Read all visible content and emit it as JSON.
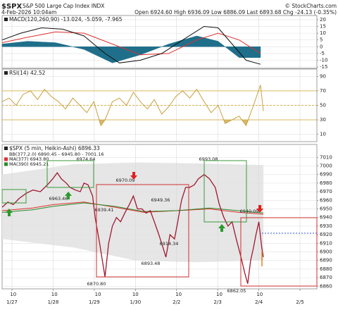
{
  "header": {
    "symbol": "$SPX",
    "name": "S&P 500 Large Cap Index INDX",
    "date": "4-Feb-2026 10:04am",
    "quote": "Open 6924.60 High 6936.09 Low 6886.09 Last 6893.68 Chg -24.13 (-0.35%)",
    "credit": "© StockCharts.com"
  },
  "chart_data": [
    {
      "type": "line",
      "title": "MACD(120,260,90) -13.024, -5.059, -7.965",
      "xlim": [
        -0.24,
        7.41
      ],
      "ylim": [
        -16,
        23.1
      ],
      "yticks": [
        20,
        15,
        10,
        5,
        0,
        -5,
        -10,
        -15
      ],
      "grid": true,
      "series": [
        {
          "color": "#1f6f8b",
          "area": true,
          "x": [
            -0.24,
            0.38,
            1.06,
            1.75,
            2.44,
            3.12,
            3.81,
            4.49,
            5.01,
            5.52,
            6.04
          ],
          "values": [
            2,
            4,
            3,
            -2,
            -12,
            -6,
            2,
            8,
            4,
            -8,
            -8
          ]
        },
        {
          "color": "#e03030",
          "x": [
            -0.24,
            0.38,
            1.06,
            1.75,
            2.44,
            3.12,
            3.81,
            4.49,
            5.01,
            5.52,
            6.04
          ],
          "values": [
            3,
            7,
            11,
            10,
            2,
            -6,
            -5,
            5,
            10,
            5,
            -5
          ]
        },
        {
          "color": "#111111",
          "x": [
            -0.24,
            0.21,
            0.72,
            1.23,
            1.75,
            2.26,
            2.61,
            3.12,
            3.64,
            4.15,
            4.67,
            5.01,
            5.35,
            5.69,
            6.04
          ],
          "values": [
            5,
            10,
            14,
            13,
            8,
            -5,
            -12,
            -10,
            -5,
            5,
            15,
            14,
            2,
            -10,
            -13
          ]
        }
      ]
    },
    {
      "type": "line",
      "title": "RSI(14) 42.52",
      "xlim": [
        -0.24,
        7.41
      ],
      "ylim": [
        0,
        100
      ],
      "yticks": [
        90,
        70,
        50,
        30,
        10
      ],
      "grid": true,
      "reference_lines": [
        70,
        50,
        30
      ],
      "reference_color": "#d9b24a",
      "shade_below": 30,
      "series": [
        {
          "color": "#c8a040",
          "x": [
            -0.24,
            -0.07,
            0.1,
            0.27,
            0.45,
            0.62,
            0.79,
            0.96,
            1.13,
            1.3,
            1.48,
            1.65,
            1.82,
            1.99,
            2.16,
            2.26,
            2.44,
            2.61,
            2.78,
            2.95,
            3.12,
            3.29,
            3.46,
            3.64,
            3.81,
            3.98,
            4.15,
            4.32,
            4.49,
            4.67,
            4.84,
            5.01,
            5.18,
            5.35,
            5.52,
            5.69,
            5.87,
            6.04,
            6.11
          ],
          "values": [
            55,
            60,
            50,
            65,
            70,
            58,
            72,
            62,
            55,
            45,
            60,
            50,
            40,
            55,
            22,
            30,
            55,
            60,
            50,
            68,
            55,
            45,
            58,
            38,
            48,
            62,
            70,
            60,
            72,
            55,
            40,
            50,
            25,
            30,
            35,
            22,
            50,
            78,
            42
          ]
        }
      ]
    },
    {
      "type": "line",
      "title": "$SPX (5 min, Heikin-Ashi) 6896.33",
      "legend": [
        "BB(377,2.0) 6890.45 - 6945.80 - 7001.16"
      ],
      "xlim": [
        -0.24,
        7.41
      ],
      "ylim": [
        6857,
        7025
      ],
      "yticks": [
        7010,
        7000,
        6990,
        6980,
        6970,
        6960,
        6950,
        6940,
        6930,
        6920,
        6910,
        6900,
        6890,
        6880,
        6870,
        6860
      ],
      "grid": true,
      "xticks": [
        {
          "value": 0,
          "label": "1/27"
        },
        {
          "value": 1,
          "label": "1/28"
        },
        {
          "value": 2,
          "label": "1/29"
        },
        {
          "value": 3,
          "label": "1/30"
        },
        {
          "value": 4,
          "label": "2/2"
        },
        {
          "value": 5,
          "label": "2/3"
        },
        {
          "value": 6,
          "label": "2/4"
        },
        {
          "value": 7,
          "label": "2/5"
        }
      ],
      "xticks_minor": [
        {
          "value": 0.03,
          "label": "10"
        },
        {
          "value": 1.03,
          "label": "10"
        },
        {
          "value": 2.09,
          "label": "10"
        },
        {
          "value": 3.0,
          "label": "10"
        },
        {
          "value": 4.05,
          "label": "10"
        },
        {
          "value": 5.04,
          "label": "10"
        },
        {
          "value": 6.02,
          "label": "10"
        }
      ],
      "band": {
        "color": "#e6e6e6",
        "x": [
          -0.24,
          1.5,
          3.0,
          4.5,
          6.11
        ],
        "upper": [
          6990,
          7002,
          7004,
          7003,
          7001
        ],
        "lower": [
          6915,
          6905,
          6890,
          6888,
          6890
        ]
      },
      "series": [
        {
          "name": "MA(377) 6943.80",
          "color": "#e03030",
          "x": [
            -0.24,
            0.5,
            1.0,
            1.75,
            2.5,
            3.2,
            4.0,
            4.8,
            5.5,
            6.11
          ],
          "values": [
            6948,
            6951,
            6955,
            6958,
            6952,
            6946,
            6948,
            6950,
            6946,
            6943.8
          ]
        },
        {
          "name": "MA(390) 6945.21",
          "color": "#2a8a2a",
          "x": [
            -0.24,
            0.5,
            1.0,
            1.75,
            2.5,
            3.2,
            4.0,
            4.8,
            5.5,
            6.11
          ],
          "values": [
            6946,
            6949,
            6953,
            6957,
            6953,
            6947,
            6948,
            6951,
            6948,
            6945.21
          ]
        },
        {
          "color": "#a01830",
          "x": [
            -0.24,
            -0.1,
            0.03,
            0.17,
            0.34,
            0.51,
            0.69,
            0.86,
            0.99,
            1.1,
            1.2,
            1.32,
            1.41,
            1.54,
            1.66,
            1.75,
            1.85,
            1.96,
            2.02,
            2.13,
            2.23,
            2.26,
            2.35,
            2.44,
            2.54,
            2.64,
            2.74,
            2.85,
            2.95,
            3.05,
            3.16,
            3.26,
            3.36,
            3.46,
            3.57,
            3.67,
            3.74,
            3.84,
            3.95,
            4.01,
            4.12,
            4.22,
            4.32,
            4.43,
            4.53,
            4.67,
            4.8,
            4.94,
            5.04,
            5.15,
            5.25,
            5.35,
            5.45,
            5.56,
            5.66,
            5.73,
            5.8,
            5.87,
            5.93,
            6.0,
            6.07,
            6.11
          ],
          "values": [
            6952,
            6958,
            6955,
            6962,
            6968,
            6972,
            6970,
            6978,
            6985,
            6992,
            6985,
            6980,
            6975,
            6972,
            6970,
            6980,
            6978,
            6965,
            6940,
            6910,
            6880,
            6871,
            6910,
            6930,
            6940,
            6935,
            6945,
            6955,
            6965,
            6950,
            6950,
            6945,
            6948,
            6935,
            6920,
            6905,
            6894,
            6920,
            6915,
            6930,
            6960,
            6975,
            6975,
            6978,
            6985,
            6990,
            6985,
            6975,
            6955,
            6940,
            6930,
            6935,
            6915,
            6895,
            6875,
            6863,
            6890,
            6905,
            6920,
            6935,
            6905,
            6894
          ]
        }
      ],
      "annotations": [
        "6974.64",
        "6963.46",
        "6970.09",
        "6939.41",
        "6949.36",
        "6870.80",
        "6893.48",
        "6914.34",
        "6993.08",
        "6940.09",
        "6862.05"
      ]
    }
  ]
}
